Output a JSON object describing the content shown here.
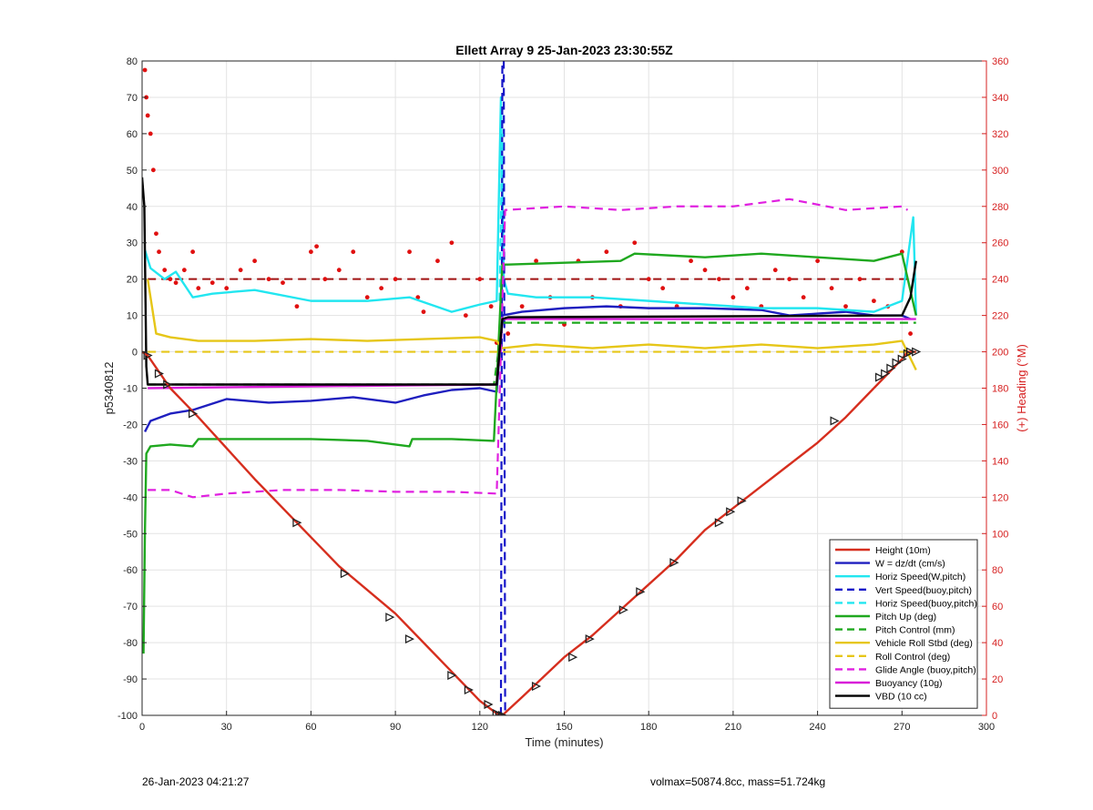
{
  "footer": {
    "left": "26-Jan-2023 04:21:27",
    "right": "volmax=50874.8cc, mass=51.724kg"
  },
  "chart_data": {
    "type": "line",
    "title": "Ellett Array 9 25-Jan-2023 23:30:55Z",
    "xlabel": "Time (minutes)",
    "ylabel": "p5340812",
    "y2label": "(+) Heading (°M)",
    "xlim": [
      0,
      300
    ],
    "ylim": [
      -100,
      80
    ],
    "y2lim": [
      0,
      360
    ],
    "xticks": [
      0,
      30,
      60,
      90,
      120,
      150,
      180,
      210,
      240,
      270,
      300
    ],
    "yticks": [
      -100,
      -90,
      -80,
      -70,
      -60,
      -50,
      -40,
      -30,
      -20,
      -10,
      0,
      10,
      20,
      30,
      40,
      50,
      60,
      70,
      80
    ],
    "y2ticks": [
      0,
      20,
      40,
      60,
      80,
      100,
      120,
      140,
      160,
      180,
      200,
      220,
      240,
      260,
      280,
      300,
      320,
      340,
      360
    ],
    "grid": true,
    "legend_position": "bottom-right",
    "series": [
      {
        "name": "Height (10m)",
        "color": "#d62e1e",
        "style": "solid",
        "x": [
          0,
          2,
          10,
          20,
          40,
          55,
          70,
          90,
          100,
          110,
          120,
          126,
          128,
          135,
          150,
          160,
          170,
          180,
          190,
          200,
          210,
          220,
          230,
          240,
          250,
          260,
          265,
          270,
          272,
          275
        ],
        "y": [
          0,
          -1,
          -10,
          -18,
          -35,
          -47,
          -59,
          -72,
          -80,
          -88,
          -96,
          -99.5,
          -100,
          -95,
          -84,
          -78,
          -71,
          -64,
          -57,
          -49,
          -43,
          -37,
          -31,
          -25,
          -18,
          -10,
          -6,
          -2,
          0,
          0
        ]
      },
      {
        "name": "W = dz/dt (cm/s)",
        "color": "#1f1fbf",
        "style": "solid",
        "x": [
          1,
          3,
          10,
          18,
          30,
          45,
          60,
          75,
          90,
          100,
          110,
          120,
          126,
          128,
          135,
          150,
          165,
          180,
          200,
          220,
          230,
          240,
          250,
          260,
          270,
          273
        ],
        "y": [
          -22,
          -19,
          -17,
          -16,
          -13,
          -14,
          -13.5,
          -12.5,
          -14,
          -12,
          -10.5,
          -10,
          -11,
          10,
          11,
          12,
          12.5,
          12,
          12,
          11.5,
          10,
          10.5,
          11,
          10,
          10,
          9
        ]
      },
      {
        "name": "Horiz Speed(W,pitch)",
        "color": "#22e6f0",
        "style": "solid",
        "x": [
          1,
          3,
          8,
          12,
          18,
          25,
          40,
          60,
          80,
          95,
          110,
          120,
          126,
          127.5,
          128.5,
          130,
          140,
          160,
          180,
          200,
          220,
          240,
          260,
          270,
          274,
          275
        ],
        "y": [
          28,
          23,
          20,
          22,
          15,
          16,
          17,
          14,
          14,
          15,
          11,
          13,
          14,
          70,
          20,
          16,
          15,
          15,
          14,
          13,
          12,
          12,
          11,
          14,
          37,
          10
        ]
      },
      {
        "name": "Vert Speed(buoy,pitch)",
        "color": "#1515c8",
        "style": "dashed",
        "x": [
          127.5,
          128,
          128.5,
          129
        ],
        "y": [
          -100,
          80,
          80,
          -100
        ]
      },
      {
        "name": "Horiz Speed(buoy,pitch)",
        "color": "#22e6f0",
        "style": "dashed",
        "x": [
          127,
          128
        ],
        "y": [
          14,
          60
        ]
      },
      {
        "name": "Pitch Up (deg)",
        "color": "#1fa81f",
        "style": "solid",
        "x": [
          0.5,
          1,
          1.5,
          3,
          10,
          18,
          20,
          40,
          60,
          80,
          95,
          96,
          110,
          125,
          128,
          130,
          150,
          170,
          175,
          200,
          220,
          240,
          260,
          270,
          275
        ],
        "y": [
          -83,
          -50,
          -28,
          -26,
          -25.5,
          -26,
          -24,
          -24,
          -24,
          -24.5,
          -26,
          -24,
          -24,
          -24.5,
          24,
          24,
          24.5,
          25,
          27,
          26,
          27,
          26,
          25,
          27,
          10
        ]
      },
      {
        "name": "Pitch Control (mm)",
        "color": "#1fa81f",
        "style": "dashed",
        "x": [
          2,
          125,
          128,
          272,
          275
        ],
        "y": [
          -9,
          -9,
          8,
          8,
          8
        ]
      },
      {
        "name": "Vehicle Roll Stbd (deg)",
        "color": "#e6c618",
        "style": "solid",
        "x": [
          2,
          5,
          10,
          20,
          40,
          60,
          80,
          100,
          120,
          126,
          128,
          140,
          160,
          180,
          200,
          220,
          240,
          260,
          270,
          275
        ],
        "y": [
          20,
          5,
          4,
          3,
          3,
          3.5,
          3,
          3.5,
          4,
          3,
          1,
          2,
          1,
          2,
          1,
          2,
          1,
          2,
          3,
          -5
        ]
      },
      {
        "name": "Roll Control (deg)",
        "color": "#e6c618",
        "style": "dashed",
        "x": [
          2,
          126,
          128,
          275
        ],
        "y": [
          0,
          0,
          0,
          0
        ]
      },
      {
        "name": "Glide Angle (buoy,pitch)",
        "color": "#e020e0",
        "style": "dashed",
        "x": [
          2,
          10,
          18,
          30,
          50,
          70,
          90,
          110,
          126,
          129,
          150,
          170,
          190,
          210,
          230,
          250,
          270,
          272
        ],
        "y": [
          -38,
          -38,
          -40,
          -39,
          -38,
          -38,
          -38.5,
          -38.5,
          -39,
          39,
          40,
          39,
          40,
          40,
          42,
          39,
          40,
          39
        ]
      },
      {
        "name": "Buoyancy (10g)",
        "color": "#d81fd8",
        "style": "solid",
        "x": [
          2,
          60,
          126,
          128,
          275
        ],
        "y": [
          -10,
          -9.5,
          -9,
          9,
          9
        ]
      },
      {
        "name": "VBD (10 cc)",
        "color": "#000000",
        "style": "solid",
        "x": [
          0,
          0.8,
          1.5,
          2,
          126,
          128,
          130,
          270,
          273,
          275
        ],
        "y": [
          48,
          40,
          -4,
          -9,
          -9,
          9,
          9.5,
          10,
          15,
          25
        ]
      }
    ],
    "heading_series": {
      "axis": "right",
      "color": "#e01010",
      "style": "dots",
      "x": [
        1,
        1.5,
        2,
        3,
        4,
        5,
        6,
        8,
        10,
        12,
        15,
        18,
        20,
        25,
        30,
        35,
        40,
        45,
        50,
        55,
        60,
        62,
        65,
        70,
        75,
        80,
        85,
        90,
        95,
        98,
        100,
        105,
        110,
        115,
        120,
        124,
        126,
        130,
        135,
        140,
        145,
        150,
        155,
        160,
        165,
        170,
        175,
        180,
        185,
        190,
        195,
        200,
        205,
        210,
        215,
        220,
        225,
        230,
        235,
        240,
        245,
        250,
        255,
        260,
        265,
        270,
        273
      ],
      "y": [
        355,
        340,
        330,
        320,
        300,
        265,
        255,
        245,
        240,
        238,
        245,
        255,
        235,
        238,
        235,
        245,
        250,
        240,
        238,
        225,
        255,
        258,
        240,
        245,
        255,
        230,
        235,
        240,
        255,
        230,
        222,
        250,
        260,
        220,
        240,
        225,
        205,
        210,
        225,
        250,
        230,
        215,
        250,
        230,
        255,
        225,
        260,
        240,
        235,
        225,
        250,
        245,
        240,
        230,
        235,
        225,
        245,
        240,
        230,
        250,
        235,
        225,
        240,
        228,
        225,
        255,
        210
      ]
    },
    "heading_reference": {
      "axis": "right",
      "color": "#a01010",
      "style": "dashed",
      "x": [
        2,
        275
      ],
      "y": [
        240,
        240
      ]
    },
    "markers": {
      "color": "#222222",
      "style": "triangle",
      "x": [
        2,
        6,
        9,
        18,
        55,
        72,
        88,
        95,
        110,
        116,
        123,
        126,
        127,
        128,
        140,
        153,
        159,
        171,
        177,
        189,
        205,
        209,
        213,
        246,
        262,
        264,
        266,
        268,
        270,
        272,
        273,
        275
      ],
      "y": [
        -1,
        -6,
        -9,
        -17,
        -47,
        -61,
        -73,
        -79,
        -89,
        -93,
        -97,
        -99.5,
        -100,
        -100,
        -92,
        -84,
        -79,
        -71,
        -66,
        -58,
        -47,
        -44,
        -41,
        -19,
        -7,
        -6,
        -4.5,
        -3,
        -2,
        -0.5,
        0,
        0
      ]
    }
  }
}
